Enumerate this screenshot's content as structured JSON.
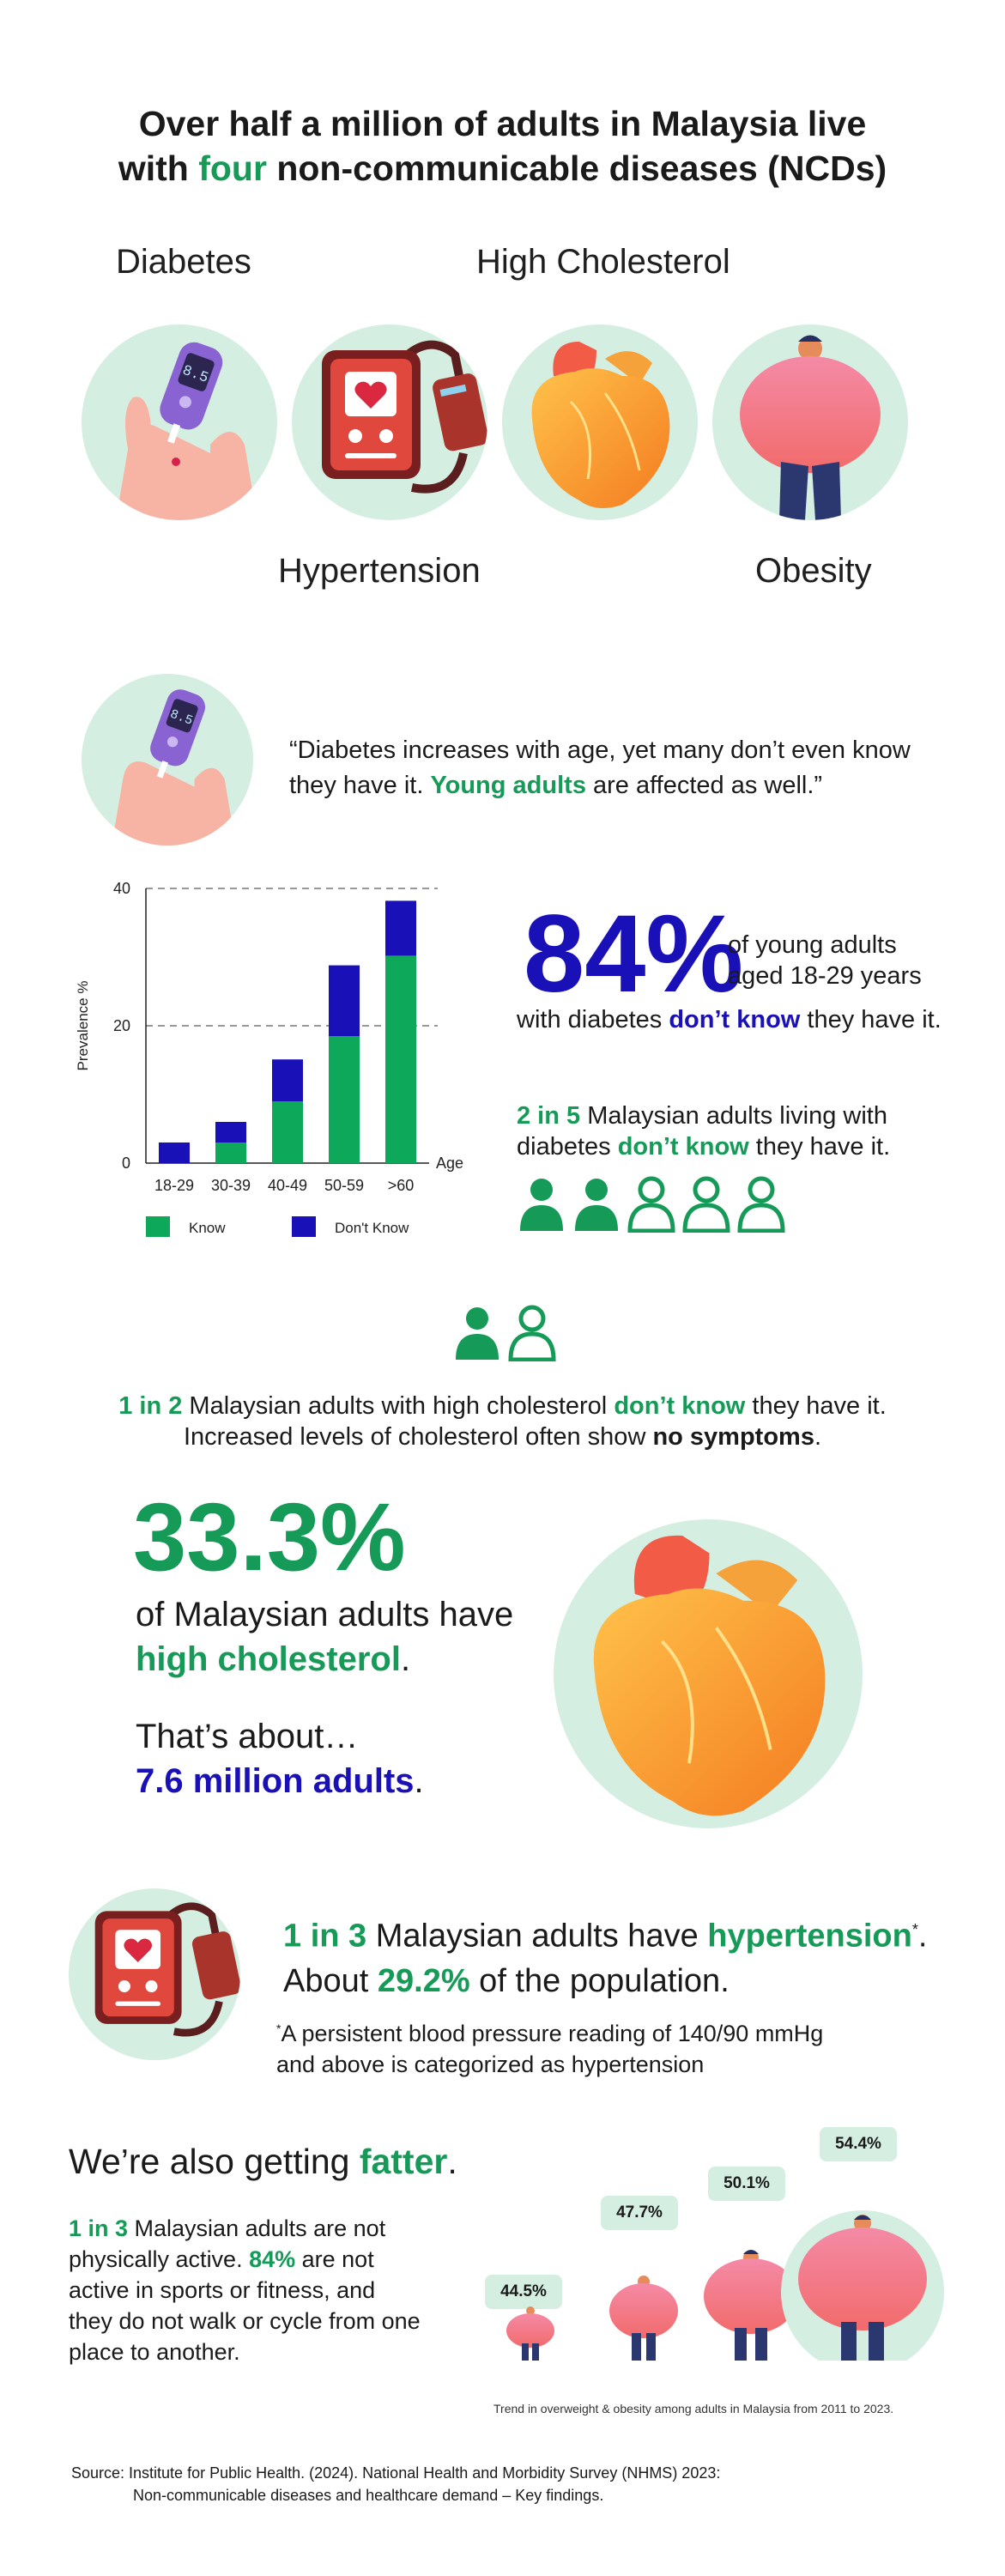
{
  "header": {
    "title_part1": "Over half a million of adults in Malaysia live",
    "title_part2_pre": "with ",
    "title_highlight": "four",
    "title_part2_post": " non-communicable diseases (NCDs)"
  },
  "diseases": {
    "diabetes": "Diabetes",
    "high_cholesterol": "High Cholesterol",
    "hypertension": "Hypertension",
    "obesity": "Obesity"
  },
  "glucometer_reading": "8.5",
  "diabetes_quote": {
    "part1": "“Diabetes increases with age, yet many don’t even know",
    "part2_pre": "they have it. ",
    "highlight": "Young adults",
    "part2_post": " are affected as well.”"
  },
  "chart_data": {
    "type": "bar",
    "stacked": true,
    "categories": [
      "18-29",
      "30-39",
      "40-49",
      "50-59",
      ">60"
    ],
    "series": [
      {
        "name": "Know",
        "color": "#0ea85a",
        "values": [
          0,
          3,
          9,
          18.5,
          30.2
        ]
      },
      {
        "name": "Don't Know",
        "color": "#1a10b8",
        "values": [
          3,
          3,
          6.1,
          10.3,
          8
        ]
      }
    ],
    "ylabel": "Prevalence %",
    "xlabel": "Age",
    "yticks": [
      0,
      20,
      40
    ],
    "ylim": [
      0,
      40
    ],
    "grid": "dashed at 20 and 40",
    "legend_position": "bottom"
  },
  "young_adults_stat": {
    "big": "84%",
    "line1": "of young adults",
    "line2": "aged 18-29 years",
    "line3_pre": "with diabetes ",
    "line3_highlight": "don’t know",
    "line3_post": " they have it."
  },
  "two_in_five": {
    "highlight": "2 in 5",
    "line1_post": " Malaysian adults living with",
    "line2_pre": "diabetes ",
    "line2_highlight": "don’t know",
    "line2_post": " they have it.",
    "filled_count": 2,
    "total_count": 5
  },
  "cholesterol_ratio": {
    "highlight": "1 in 2",
    "line1_mid": " Malaysian adults with high cholesterol ",
    "line1_highlight": "don’t know",
    "line1_post": " they have it.",
    "line2_pre": "Increased levels of cholesterol often show ",
    "line2_bold": "no symptoms",
    "line2_post": ".",
    "filled_count": 1,
    "total_count": 2
  },
  "cholesterol_stat": {
    "big": "33.3%",
    "line1": "of Malaysian adults have",
    "highlight": "high cholesterol",
    "period": ".",
    "about": "That’s about…",
    "million": "7.6 million adults",
    "period2": "."
  },
  "hypertension": {
    "highlight1": "1 in 3",
    "line1_mid": " Malaysian adults have ",
    "highlight2": "hypertension",
    "star": "*",
    "period": ".",
    "line2_pre": "About ",
    "highlight3": "29.2%",
    "line2_post": " of the population.",
    "footnote_star": "*",
    "footnote1": "A persistent blood pressure reading of 140/90 mmHg",
    "footnote2": "and above is categorized as hypertension"
  },
  "obesity": {
    "heading_pre": "We’re also getting ",
    "heading_highlight": "fatter",
    "heading_post": ".",
    "p_highlight1": "1 in 3",
    "p_line1_post": " Malaysian adults are not",
    "p_line2_pre": "physically active. ",
    "p_highlight2": "84%",
    "p_line2_post": " are not",
    "p_line3": "active in sports or fitness, and",
    "p_line4": "they do not walk or cycle from one",
    "p_line5": "place to another.",
    "trend_values": [
      "44.5%",
      "47.7%",
      "50.1%",
      "54.4%"
    ],
    "trend_caption": "Trend in overweight & obesity among adults in Malaysia from 2011 to 2023."
  },
  "source": {
    "line1": "Source: Institute for Public Health. (2024). National Health and Morbidity Survey (NHMS) 2023:",
    "line2": "Non-communicable diseases and healthcare demand – Key findings."
  },
  "colors": {
    "green": "#159a57",
    "blue": "#1a10b8",
    "mint": "#d5eee2"
  }
}
